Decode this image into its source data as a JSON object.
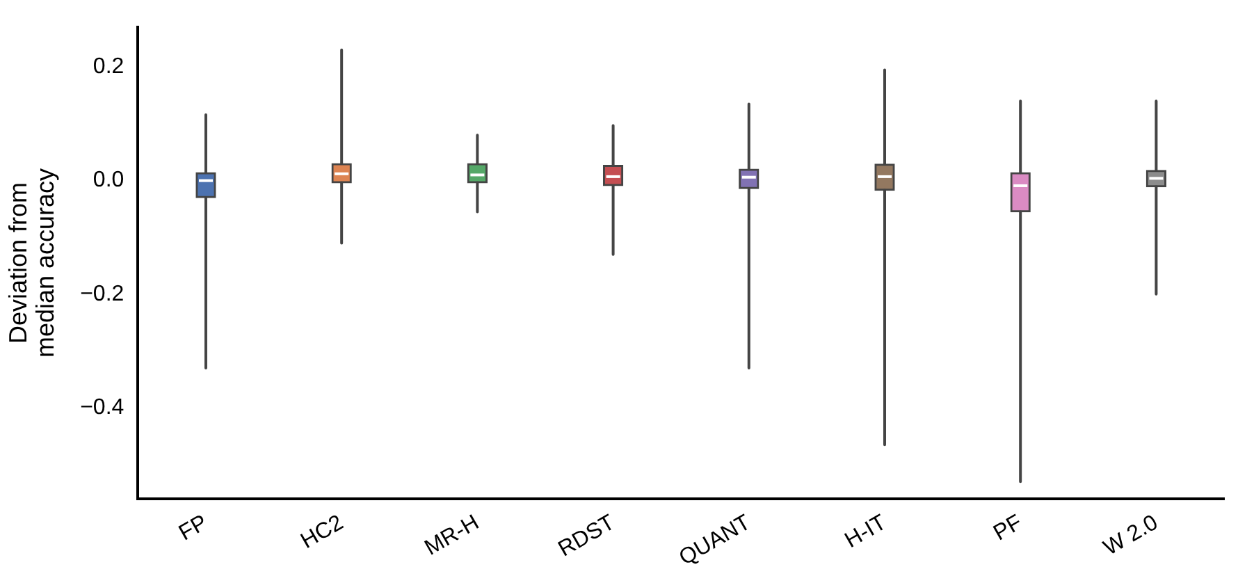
{
  "chart_data": {
    "type": "box",
    "ylabel": "Deviation from median accuracy",
    "categories": [
      "FP",
      "HC2",
      "MR-H",
      "RDST",
      "QUANT",
      "H-IT",
      "PF",
      "W 2.0"
    ],
    "colors": [
      "#4c72b0",
      "#dd8452",
      "#55a868",
      "#c44e52",
      "#8172b3",
      "#937860",
      "#da8bc3",
      "#8c8c8c"
    ],
    "boxes": [
      {
        "low": -0.33,
        "q1": -0.03,
        "median": 0.0,
        "q3": 0.014,
        "high": 0.116
      },
      {
        "low": -0.11,
        "q1": -0.004,
        "median": 0.012,
        "q3": 0.03,
        "high": 0.23
      },
      {
        "low": -0.055,
        "q1": -0.004,
        "median": 0.01,
        "q3": 0.03,
        "high": 0.08
      },
      {
        "low": -0.13,
        "q1": -0.009,
        "median": 0.007,
        "q3": 0.027,
        "high": 0.097
      },
      {
        "low": -0.33,
        "q1": -0.014,
        "median": 0.006,
        "q3": 0.02,
        "high": 0.135
      },
      {
        "low": -0.465,
        "q1": -0.017,
        "median": 0.007,
        "q3": 0.029,
        "high": 0.195
      },
      {
        "low": -0.53,
        "q1": -0.055,
        "median": -0.009,
        "q3": 0.014,
        "high": 0.14
      },
      {
        "low": -0.2,
        "q1": -0.011,
        "median": 0.004,
        "q3": 0.018,
        "high": 0.14
      }
    ],
    "ylim": [
      -0.56,
      0.27
    ],
    "yticks": [
      0.2,
      {
        "value": 0,
        "label": "0.0"
      },
      {
        "value": -0.2,
        "label": "−0.2"
      },
      {
        "value": -0.4,
        "label": "−0.4"
      }
    ],
    "grid": false,
    "legend": false
  }
}
